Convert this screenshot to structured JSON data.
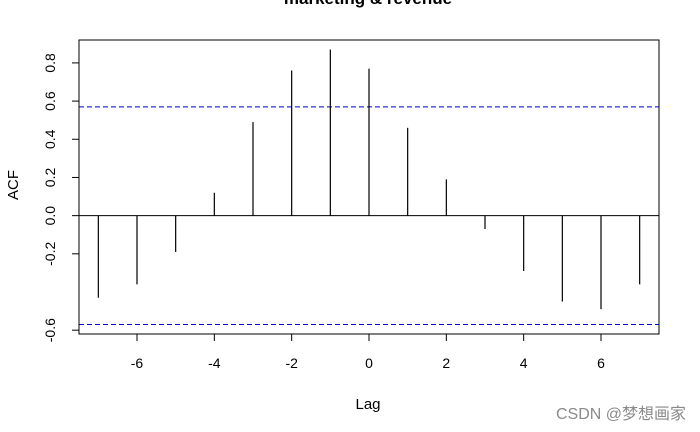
{
  "chart_data": {
    "type": "bar",
    "title": "marketing & revenue",
    "xlabel": "Lag",
    "ylabel": "ACF",
    "xlim": [
      -7.5,
      7.5
    ],
    "ylim": [
      -0.62,
      0.92
    ],
    "x_ticks": [
      -6,
      -4,
      -2,
      0,
      2,
      4,
      6
    ],
    "y_ticks": [
      -0.6,
      -0.2,
      0.0,
      0.2,
      0.4,
      0.6,
      0.8
    ],
    "y_tick_labels": [
      "-0.6",
      "-0.2",
      "0.0",
      "0.2",
      "0.4",
      "0.6",
      "0.8"
    ],
    "confidence_limits": [
      0.57,
      -0.57
    ],
    "confidence_line_color": "#0000cc",
    "series": [
      {
        "x": [
          -7,
          -6,
          -5,
          -4,
          -3,
          -2,
          -1,
          0,
          1,
          2,
          3,
          4,
          5,
          6,
          7
        ],
        "values": [
          -0.43,
          -0.36,
          -0.19,
          0.12,
          0.49,
          0.76,
          0.87,
          0.77,
          0.46,
          0.19,
          -0.07,
          -0.29,
          -0.45,
          -0.49,
          -0.36
        ]
      }
    ]
  },
  "watermark": "CSDN @梦想画家"
}
